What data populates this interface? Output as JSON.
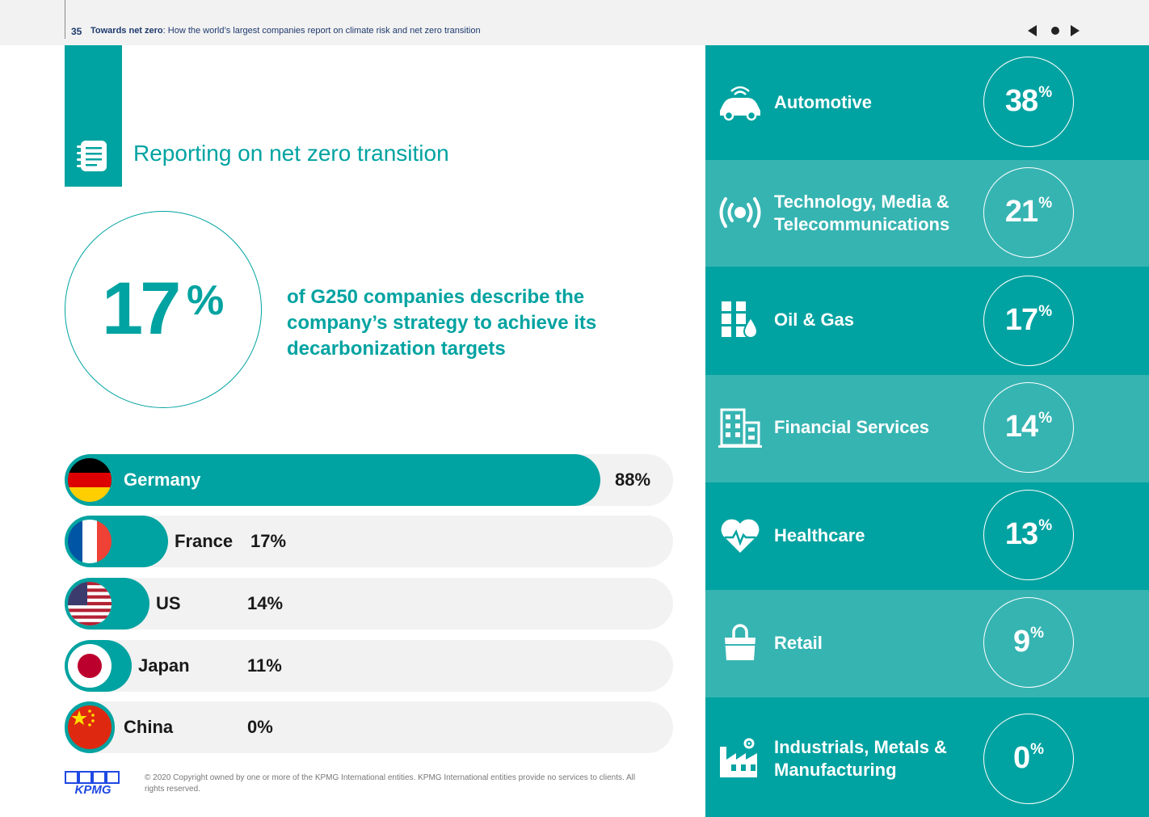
{
  "header": {
    "page_number": "35",
    "report_title": "Towards net zero",
    "report_subtitle": ": How the world’s largest companies report on climate risk and net zero transition",
    "nav": {
      "prev_icon": "triangle-left-icon",
      "home_icon": "dot-icon",
      "next_icon": "triangle-right-icon"
    }
  },
  "section": {
    "title": "Reporting on net zero transition",
    "icon": "notebook-icon"
  },
  "headline": {
    "value": "17",
    "unit": "%",
    "description": "of G250 companies describe the company’s strategy to achieve its decarbonization targets"
  },
  "chart_data": {
    "type": "bar",
    "categories": [
      "Germany",
      "France",
      "US",
      "Japan",
      "China"
    ],
    "values": [
      88,
      17,
      14,
      11,
      0
    ],
    "labels": [
      "88%",
      "17%",
      "14%",
      "11%",
      "0%"
    ],
    "unit": "%",
    "xlim": [
      0,
      100
    ]
  },
  "sectors": [
    {
      "name": "Automotive",
      "value": "38",
      "unit": "%",
      "icon": "car-icon"
    },
    {
      "name": "Technology, Media & Telecommunications",
      "value": "21",
      "unit": "%",
      "icon": "broadcast-icon"
    },
    {
      "name": "Oil & Gas",
      "value": "17",
      "unit": "%",
      "icon": "oil-barrel-icon"
    },
    {
      "name": "Financial Services",
      "value": "14",
      "unit": "%",
      "icon": "office-building-icon"
    },
    {
      "name": "Healthcare",
      "value": "13",
      "unit": "%",
      "icon": "heart-pulse-icon"
    },
    {
      "name": "Retail",
      "value": "9",
      "unit": "%",
      "icon": "shopping-bag-icon"
    },
    {
      "name": "Industrials, Metals & Manufacturing",
      "value": "0",
      "unit": "%",
      "icon": "factory-icon"
    }
  ],
  "footer": {
    "logo_text": "KPMG",
    "copyright": "© 2020 Copyright owned by one or more of the KPMG International entities. KPMG International entities provide no services to clients.  All rights reserved."
  },
  "colors": {
    "accent": "#00a3a1",
    "accent_light": "#36b4b2",
    "bar_track": "#f2f2f2",
    "text_dark": "#1a1a1a",
    "header_text": "#1e3a6e"
  }
}
